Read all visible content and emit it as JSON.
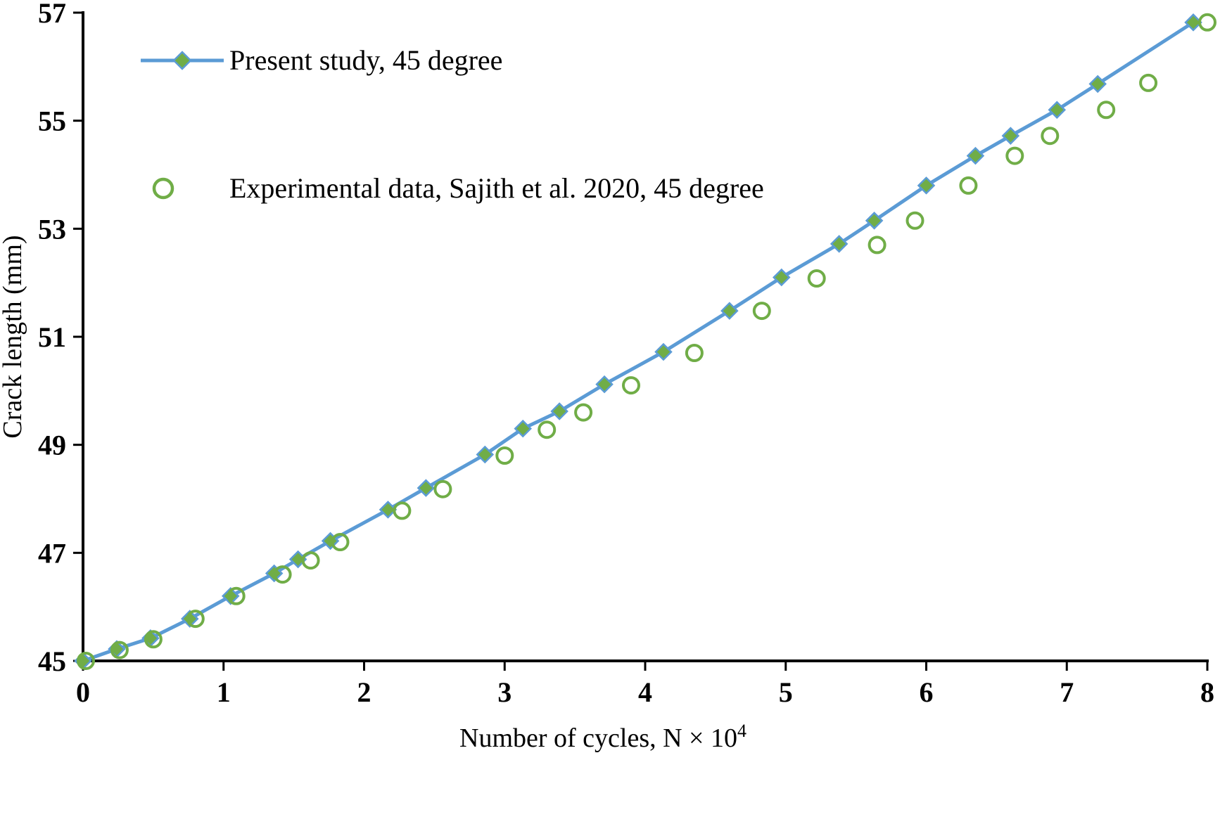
{
  "chart_data": {
    "type": "line-scatter",
    "title": "",
    "xlabel_base": "Number of cycles, N ×  10",
    "xlabel_sup": "4",
    "ylabel": "Crack length (mm)",
    "xlim": [
      0,
      8
    ],
    "ylim": [
      45,
      57
    ],
    "xticks": [
      "0",
      "1",
      "2",
      "3",
      "4",
      "5",
      "6",
      "7",
      "8"
    ],
    "xtick_values": [
      0,
      1,
      2,
      3,
      4,
      5,
      6,
      7,
      8
    ],
    "yticks": [
      "45",
      "47",
      "49",
      "51",
      "53",
      "55",
      "57"
    ],
    "ytick_values": [
      45,
      47,
      49,
      51,
      53,
      55,
      57
    ],
    "grid": false,
    "legend_position": "top-left-inside",
    "axis_color": "#000000",
    "series": [
      {
        "name": "Present study, 45 degree",
        "draw": "line-with-markers",
        "marker": "diamond",
        "line_color": "#5B9BD5",
        "marker_fill": "#70AD47",
        "marker_stroke": "#5B9BD5",
        "points": [
          [
            0.0,
            45.0
          ],
          [
            0.24,
            45.22
          ],
          [
            0.48,
            45.42
          ],
          [
            0.76,
            45.78
          ],
          [
            1.05,
            46.2
          ],
          [
            1.36,
            46.62
          ],
          [
            1.53,
            46.88
          ],
          [
            1.76,
            47.22
          ],
          [
            2.17,
            47.8
          ],
          [
            2.44,
            48.2
          ],
          [
            2.86,
            48.82
          ],
          [
            3.13,
            49.3
          ],
          [
            3.39,
            49.62
          ],
          [
            3.71,
            50.12
          ],
          [
            4.13,
            50.72
          ],
          [
            4.6,
            51.48
          ],
          [
            4.97,
            52.1
          ],
          [
            5.38,
            52.72
          ],
          [
            5.63,
            53.15
          ],
          [
            6.0,
            53.8
          ],
          [
            6.35,
            54.35
          ],
          [
            6.6,
            54.72
          ],
          [
            6.93,
            55.2
          ],
          [
            7.22,
            55.68
          ],
          [
            7.9,
            56.82
          ]
        ]
      },
      {
        "name": "Experimental data, Sajith et al. 2020, 45 degree",
        "draw": "markers-only",
        "marker": "open-circle",
        "marker_stroke": "#70AD47",
        "marker_fill": "#FFFFFF",
        "points": [
          [
            0.02,
            45.0
          ],
          [
            0.26,
            45.2
          ],
          [
            0.5,
            45.4
          ],
          [
            0.8,
            45.78
          ],
          [
            1.09,
            46.2
          ],
          [
            1.42,
            46.6
          ],
          [
            1.62,
            46.86
          ],
          [
            1.83,
            47.2
          ],
          [
            2.27,
            47.78
          ],
          [
            2.56,
            48.18
          ],
          [
            3.0,
            48.8
          ],
          [
            3.3,
            49.28
          ],
          [
            3.56,
            49.6
          ],
          [
            3.9,
            50.1
          ],
          [
            4.35,
            50.7
          ],
          [
            4.83,
            51.48
          ],
          [
            5.22,
            52.08
          ],
          [
            5.65,
            52.7
          ],
          [
            5.92,
            53.15
          ],
          [
            6.3,
            53.8
          ],
          [
            6.63,
            54.35
          ],
          [
            6.88,
            54.72
          ],
          [
            7.28,
            55.2
          ],
          [
            7.58,
            55.7
          ],
          [
            8.0,
            56.82
          ]
        ]
      }
    ]
  }
}
